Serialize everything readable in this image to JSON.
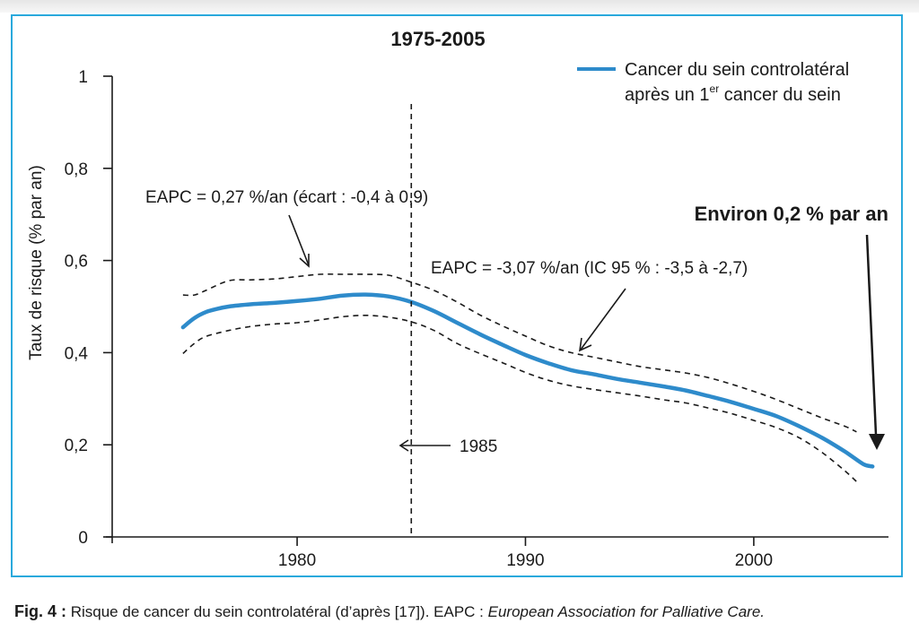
{
  "chart_data": {
    "type": "line",
    "title": "1975-2005",
    "ylabel": "Taux de risque (% par an)",
    "xlabel": "",
    "xlim": [
      1971.9,
      2005.9
    ],
    "ylim": [
      0,
      1
    ],
    "x_ticks": [
      1980,
      1990,
      2000
    ],
    "y_ticks": [
      {
        "value": 0,
        "label": "0"
      },
      {
        "value": 0.2,
        "label": "0,2"
      },
      {
        "value": 0.4,
        "label": "0,4"
      },
      {
        "value": 0.6,
        "label": "0,6"
      },
      {
        "value": 0.8,
        "label": "0,8"
      },
      {
        "value": 1,
        "label": "1"
      }
    ],
    "grid": false,
    "legend_position": "top-right",
    "legend": {
      "line1": "Cancer du sein controlatéral",
      "line2_prefix": "après un 1",
      "line2_sup": "er",
      "line2_suffix": " cancer du sein"
    },
    "series": [
      {
        "name": "Cancer du sein controlatéral après un 1er cancer du sein",
        "style": "solid",
        "color": "#2e8bcb",
        "x": [
          1975,
          1975.5,
          1976,
          1976.5,
          1977,
          1978,
          1979,
          1980,
          1981,
          1982,
          1983,
          1984,
          1985,
          1986,
          1987,
          1988,
          1989,
          1990,
          1991,
          1992,
          1993,
          1994,
          1995,
          1996,
          1997,
          1998,
          1999,
          2000,
          2001,
          2002,
          2003,
          2004,
          2004.8,
          2005.2
        ],
        "y": [
          0.455,
          0.475,
          0.488,
          0.495,
          0.5,
          0.505,
          0.508,
          0.512,
          0.517,
          0.524,
          0.526,
          0.522,
          0.51,
          0.49,
          0.465,
          0.44,
          0.417,
          0.395,
          0.377,
          0.362,
          0.353,
          0.343,
          0.335,
          0.327,
          0.318,
          0.306,
          0.293,
          0.278,
          0.262,
          0.24,
          0.215,
          0.185,
          0.158,
          0.153
        ]
      },
      {
        "name": "",
        "style": "dashed",
        "color": "#1a1a1a",
        "x": [
          1975,
          1975.5,
          1976,
          1977,
          1978,
          1979,
          1980,
          1981,
          1982,
          1983,
          1984,
          1985,
          1986,
          1987,
          1988,
          1989,
          1990,
          1991,
          1992,
          1993,
          1994,
          1995,
          1996,
          1997,
          1998,
          1999,
          2000,
          2001,
          2002,
          2003,
          2004,
          2004.5
        ],
        "y": [
          0.525,
          0.525,
          0.535,
          0.556,
          0.558,
          0.56,
          0.565,
          0.57,
          0.57,
          0.57,
          0.568,
          0.553,
          0.535,
          0.51,
          0.482,
          0.458,
          0.436,
          0.415,
          0.4,
          0.39,
          0.38,
          0.37,
          0.363,
          0.356,
          0.346,
          0.332,
          0.316,
          0.298,
          0.278,
          0.258,
          0.24,
          0.228
        ]
      },
      {
        "name": "",
        "style": "dashed",
        "color": "#1a1a1a",
        "x": [
          1975,
          1975.5,
          1976,
          1977,
          1978,
          1979,
          1980,
          1981,
          1982,
          1983,
          1984,
          1985,
          1986,
          1987,
          1988,
          1989,
          1990,
          1991,
          1992,
          1993,
          1994,
          1995,
          1996,
          1997,
          1998,
          1999,
          2000,
          2001,
          2002,
          2003,
          2004,
          2004.5
        ],
        "y": [
          0.398,
          0.42,
          0.435,
          0.448,
          0.457,
          0.462,
          0.465,
          0.471,
          0.478,
          0.481,
          0.477,
          0.467,
          0.448,
          0.42,
          0.398,
          0.378,
          0.357,
          0.34,
          0.328,
          0.32,
          0.313,
          0.306,
          0.298,
          0.291,
          0.28,
          0.268,
          0.253,
          0.237,
          0.215,
          0.183,
          0.143,
          0.12
        ]
      }
    ],
    "reference_line": {
      "x": 1985,
      "label": "1985"
    },
    "annotations": [
      {
        "id": "eapc1",
        "text": "EAPC = 0,27 %/an (écart : -0,4 à 0,9)"
      },
      {
        "id": "eapc2",
        "text": "EAPC = -3,07 %/an (IC 95 % : -3,5 à -2,7)"
      },
      {
        "id": "environ",
        "text": "Environ 0,2 % par an"
      }
    ]
  },
  "caption": {
    "label": "Fig. 4 :",
    "text": " Risque de cancer du sein controlatéral (d’après [17]). EAPC : ",
    "italic": "European Association for Palliative Care."
  },
  "colors": {
    "frame": "#29a9dc",
    "line": "#2e8bcb",
    "ink": "#1a1a1a"
  }
}
